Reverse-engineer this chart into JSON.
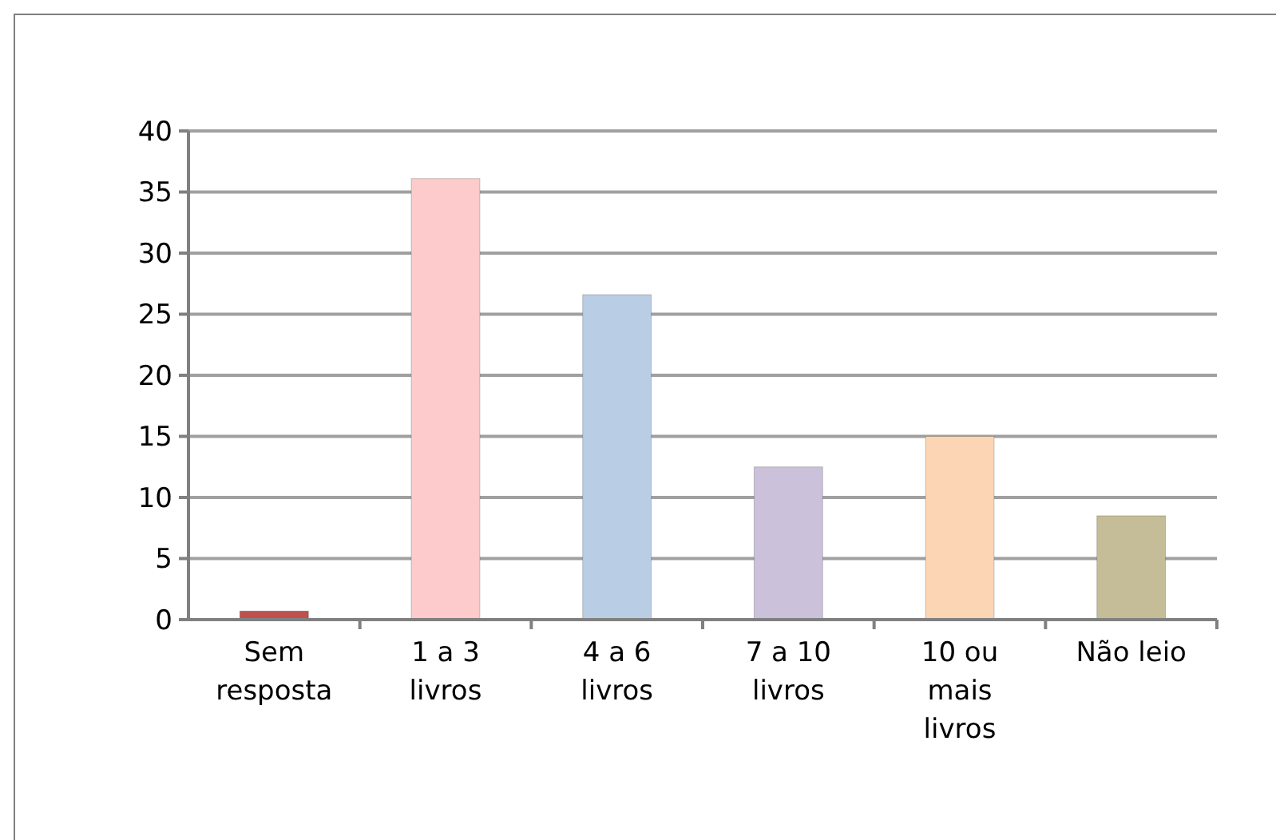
{
  "chart_data": {
    "type": "bar",
    "categories": [
      "Sem resposta",
      "1 a 3 livros",
      "4 a 6 livros",
      "7 a 10 livros",
      "10 ou mais livros",
      "Não leio"
    ],
    "values": [
      0.7,
      36.1,
      26.6,
      12.5,
      15,
      8.5
    ],
    "colors": [
      "#c0504d",
      "#fdcbcb",
      "#b9cde5",
      "#ccc1da",
      "#fcd5b5",
      "#c4bd97"
    ],
    "ylim": [
      0,
      40
    ],
    "yticks": [
      0,
      5,
      10,
      15,
      20,
      25,
      30,
      35,
      40
    ],
    "grid": "y"
  }
}
